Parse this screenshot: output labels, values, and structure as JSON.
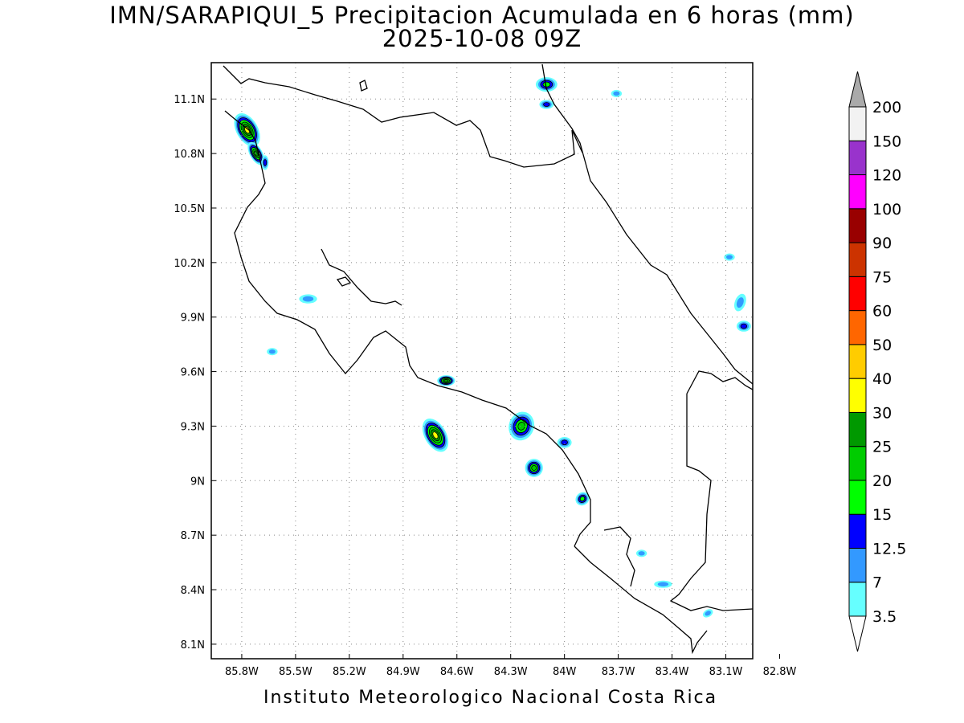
{
  "title": {
    "line1": "IMN/SARAPIQUI_5 Precipitacion Acumulada en 6 horas (mm)",
    "line2": "2025-10-08 09Z"
  },
  "footer": "Instituto Meteorologico Nacional Costa Rica",
  "axes": {
    "lon_range": [
      -85.97,
      -82.95
    ],
    "lat_range": [
      8.02,
      11.3
    ],
    "lon_ticks": [
      {
        "v": -85.8,
        "label": "85.8W"
      },
      {
        "v": -85.5,
        "label": "85.5W"
      },
      {
        "v": -85.2,
        "label": "85.2W"
      },
      {
        "v": -84.9,
        "label": "84.9W"
      },
      {
        "v": -84.6,
        "label": "84.6W"
      },
      {
        "v": -84.3,
        "label": "84.3W"
      },
      {
        "v": -84.0,
        "label": "84W"
      },
      {
        "v": -83.7,
        "label": "83.7W"
      },
      {
        "v": -83.4,
        "label": "83.4W"
      },
      {
        "v": -83.1,
        "label": "83.1W"
      },
      {
        "v": -82.8,
        "label": "82.8W"
      }
    ],
    "lat_ticks": [
      {
        "v": 11.1,
        "label": "11.1N"
      },
      {
        "v": 10.8,
        "label": "10.8N"
      },
      {
        "v": 10.5,
        "label": "10.5N"
      },
      {
        "v": 10.2,
        "label": "10.2N"
      },
      {
        "v": 9.9,
        "label": "9.9N"
      },
      {
        "v": 9.6,
        "label": "9.6N"
      },
      {
        "v": 9.3,
        "label": "9.3N"
      },
      {
        "v": 9.0,
        "label": "9N"
      },
      {
        "v": 8.7,
        "label": "8.7N"
      },
      {
        "v": 8.4,
        "label": "8.4N"
      },
      {
        "v": 8.1,
        "label": "8.1N"
      }
    ],
    "grid": true
  },
  "colorbar": {
    "levels": [
      "3.5",
      "7",
      "12.5",
      "15",
      "20",
      "25",
      "30",
      "40",
      "50",
      "60",
      "75",
      "90",
      "100",
      "120",
      "150",
      "200"
    ],
    "colors": [
      "#66ffff",
      "#3399ff",
      "#0000ff",
      "#00ff00",
      "#00cc00",
      "#009900",
      "#ffff00",
      "#ffcc00",
      "#ff6600",
      "#ff0000",
      "#cc3300",
      "#990000",
      "#ff00ff",
      "#9933cc",
      "#f2f2f2"
    ],
    "over_color": "#aaaaaa",
    "under_color": "#ffffff"
  },
  "precip_cells": [
    {
      "lon": -85.77,
      "lat": 10.93,
      "rx": 0.06,
      "ry": 0.1,
      "rot": -30,
      "level": 7
    },
    {
      "lon": -85.72,
      "lat": 10.8,
      "rx": 0.035,
      "ry": 0.07,
      "rot": -30,
      "level": 6
    },
    {
      "lon": -85.67,
      "lat": 10.75,
      "rx": 0.02,
      "ry": 0.04,
      "rot": 0,
      "level": 3
    },
    {
      "lon": -84.66,
      "lat": 9.55,
      "rx": 0.05,
      "ry": 0.03,
      "rot": 0,
      "level": 6
    },
    {
      "lon": -84.72,
      "lat": 9.25,
      "rx": 0.06,
      "ry": 0.1,
      "rot": -30,
      "level": 7
    },
    {
      "lon": -84.24,
      "lat": 9.3,
      "rx": 0.07,
      "ry": 0.08,
      "rot": 20,
      "level": 5
    },
    {
      "lon": -84.17,
      "lat": 9.07,
      "rx": 0.05,
      "ry": 0.05,
      "rot": 0,
      "level": 5
    },
    {
      "lon": -84.0,
      "lat": 9.21,
      "rx": 0.04,
      "ry": 0.03,
      "rot": 0,
      "level": 3
    },
    {
      "lon": -83.9,
      "lat": 8.9,
      "rx": 0.04,
      "ry": 0.035,
      "rot": -40,
      "level": 4
    },
    {
      "lon": -84.1,
      "lat": 11.18,
      "rx": 0.06,
      "ry": 0.04,
      "rot": 0,
      "level": 4
    },
    {
      "lon": -84.1,
      "lat": 11.07,
      "rx": 0.04,
      "ry": 0.025,
      "rot": 0,
      "level": 3
    },
    {
      "lon": -83.57,
      "lat": 8.6,
      "rx": 0.03,
      "ry": 0.02,
      "rot": 0,
      "level": 2
    },
    {
      "lon": -83.2,
      "lat": 8.27,
      "rx": 0.03,
      "ry": 0.02,
      "rot": -30,
      "level": 2
    },
    {
      "lon": -83.0,
      "lat": 9.85,
      "rx": 0.04,
      "ry": 0.03,
      "rot": 0,
      "level": 3
    },
    {
      "lon": -83.02,
      "lat": 9.98,
      "rx": 0.03,
      "ry": 0.05,
      "rot": 20,
      "level": 2
    },
    {
      "lon": -83.08,
      "lat": 10.23,
      "rx": 0.03,
      "ry": 0.02,
      "rot": 0,
      "level": 2
    },
    {
      "lon": -85.43,
      "lat": 10.0,
      "rx": 0.05,
      "ry": 0.025,
      "rot": 0,
      "level": 2
    },
    {
      "lon": -85.63,
      "lat": 9.71,
      "rx": 0.03,
      "ry": 0.02,
      "rot": 0,
      "level": 2
    },
    {
      "lon": -83.71,
      "lat": 11.13,
      "rx": 0.03,
      "ry": 0.02,
      "rot": 0,
      "level": 2
    },
    {
      "lon": -83.45,
      "lat": 8.43,
      "rx": 0.05,
      "ry": 0.02,
      "rot": 0,
      "level": 2
    }
  ]
}
